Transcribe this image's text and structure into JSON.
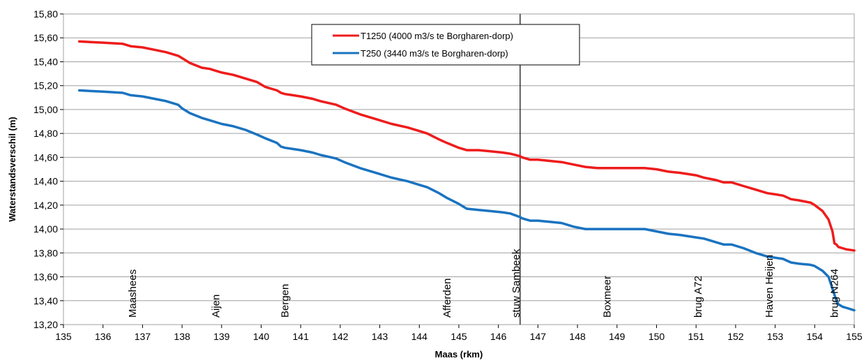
{
  "chart_data": {
    "type": "line",
    "title": "",
    "xlabel": "Maas (rkm)",
    "ylabel": "Waterstandsverschil (m)",
    "xlim": [
      135,
      155
    ],
    "ylim": [
      13.2,
      15.8
    ],
    "x_ticks": [
      "135",
      "136",
      "137",
      "138",
      "139",
      "140",
      "141",
      "142",
      "143",
      "144",
      "145",
      "146",
      "147",
      "148",
      "149",
      "150",
      "151",
      "152",
      "153",
      "154",
      "155"
    ],
    "y_ticks": [
      "13,20",
      "13,40",
      "13,60",
      "13,80",
      "14,00",
      "14,20",
      "14,40",
      "14,60",
      "14,80",
      "15,00",
      "15,20",
      "15,40",
      "15,60",
      "15,80"
    ],
    "grid": "horizontal",
    "legend_position": "top-center",
    "series": [
      {
        "name": "T1250 (4000 m3/s te Borgharen-dorp)",
        "color": "#ee1c1c",
        "x": [
          135.4,
          136.0,
          136.5,
          136.7,
          137.0,
          137.3,
          137.6,
          137.9,
          138.0,
          138.2,
          138.5,
          138.7,
          139.0,
          139.3,
          139.6,
          139.9,
          140.1,
          140.4,
          140.5,
          140.6,
          140.8,
          141.0,
          141.3,
          141.5,
          141.9,
          142.1,
          142.5,
          142.9,
          143.3,
          143.7,
          144.0,
          144.2,
          144.5,
          144.7,
          145.0,
          145.2,
          145.5,
          145.8,
          146.1,
          146.3,
          146.55,
          146.6,
          146.7,
          146.8,
          147.0,
          147.3,
          147.6,
          147.9,
          148.2,
          148.5,
          149.0,
          149.5,
          149.7,
          150.0,
          150.3,
          150.6,
          151.0,
          151.2,
          151.5,
          151.7,
          151.9,
          152.2,
          152.5,
          152.8,
          153.0,
          153.2,
          153.4,
          153.6,
          153.9,
          154.0,
          154.2,
          154.35,
          154.45,
          154.5,
          154.55,
          154.6,
          154.7,
          154.8,
          155.0
        ],
        "values": [
          15.57,
          15.56,
          15.55,
          15.53,
          15.52,
          15.5,
          15.48,
          15.45,
          15.43,
          15.39,
          15.35,
          15.34,
          15.31,
          15.29,
          15.26,
          15.23,
          15.19,
          15.16,
          15.14,
          15.13,
          15.12,
          15.11,
          15.09,
          15.07,
          15.04,
          15.01,
          14.96,
          14.92,
          14.88,
          14.85,
          14.82,
          14.8,
          14.75,
          14.72,
          14.68,
          14.66,
          14.66,
          14.65,
          14.64,
          14.63,
          14.61,
          14.6,
          14.59,
          14.58,
          14.58,
          14.57,
          14.56,
          14.54,
          14.52,
          14.51,
          14.51,
          14.51,
          14.51,
          14.5,
          14.48,
          14.47,
          14.45,
          14.43,
          14.41,
          14.39,
          14.39,
          14.36,
          14.33,
          14.3,
          14.29,
          14.28,
          14.25,
          14.24,
          14.22,
          14.2,
          14.15,
          14.08,
          13.98,
          13.88,
          13.87,
          13.85,
          13.84,
          13.83,
          13.82
        ]
      },
      {
        "name": "T250 (3440 m3/s te Borgharen-dorp)",
        "color": "#1a73c0",
        "x": [
          135.4,
          136.0,
          136.5,
          136.7,
          137.0,
          137.3,
          137.6,
          137.9,
          138.0,
          138.2,
          138.5,
          138.7,
          139.0,
          139.3,
          139.6,
          139.9,
          140.1,
          140.4,
          140.5,
          140.6,
          140.8,
          141.0,
          141.3,
          141.5,
          141.9,
          142.1,
          142.5,
          142.9,
          143.3,
          143.7,
          144.0,
          144.2,
          144.5,
          144.7,
          145.0,
          145.2,
          145.5,
          145.8,
          146.1,
          146.3,
          146.55,
          146.6,
          146.7,
          146.8,
          147.0,
          147.3,
          147.6,
          147.9,
          148.2,
          148.5,
          149.0,
          149.5,
          149.7,
          150.0,
          150.3,
          150.6,
          151.0,
          151.2,
          151.5,
          151.7,
          151.9,
          152.2,
          152.5,
          152.8,
          153.0,
          153.2,
          153.4,
          153.6,
          153.9,
          154.0,
          154.2,
          154.35,
          154.45,
          154.5,
          154.55,
          154.6,
          154.7,
          154.8,
          155.0
        ],
        "values": [
          15.16,
          15.15,
          15.14,
          15.12,
          15.11,
          15.09,
          15.07,
          15.04,
          15.01,
          14.97,
          14.93,
          14.91,
          14.88,
          14.86,
          14.83,
          14.79,
          14.76,
          14.72,
          14.69,
          14.68,
          14.67,
          14.66,
          14.64,
          14.62,
          14.59,
          14.56,
          14.51,
          14.47,
          14.43,
          14.4,
          14.37,
          14.35,
          14.3,
          14.26,
          14.21,
          14.17,
          14.16,
          14.15,
          14.14,
          14.13,
          14.1,
          14.09,
          14.08,
          14.07,
          14.07,
          14.06,
          14.05,
          14.02,
          14.0,
          14.0,
          14.0,
          14.0,
          14.0,
          13.98,
          13.96,
          13.95,
          13.93,
          13.92,
          13.89,
          13.87,
          13.87,
          13.84,
          13.8,
          13.77,
          13.76,
          13.75,
          13.72,
          13.71,
          13.7,
          13.69,
          13.65,
          13.6,
          13.5,
          13.45,
          13.4,
          13.37,
          13.35,
          13.34,
          13.32
        ]
      }
    ],
    "vertical_line": {
      "x": 146.55,
      "color": "#000000"
    },
    "locations": [
      {
        "x": 136.75,
        "label": "Maashees"
      },
      {
        "x": 138.85,
        "label": "Aijen"
      },
      {
        "x": 140.6,
        "label": "Bergen"
      },
      {
        "x": 144.7,
        "label": "Afferden"
      },
      {
        "x": 146.45,
        "label": "stuw Sambeek"
      },
      {
        "x": 148.75,
        "label": "Boxmeer"
      },
      {
        "x": 151.05,
        "label": "brug A72"
      },
      {
        "x": 152.85,
        "label": "Haven Heijen"
      },
      {
        "x": 154.5,
        "label": "brug N264"
      }
    ]
  }
}
